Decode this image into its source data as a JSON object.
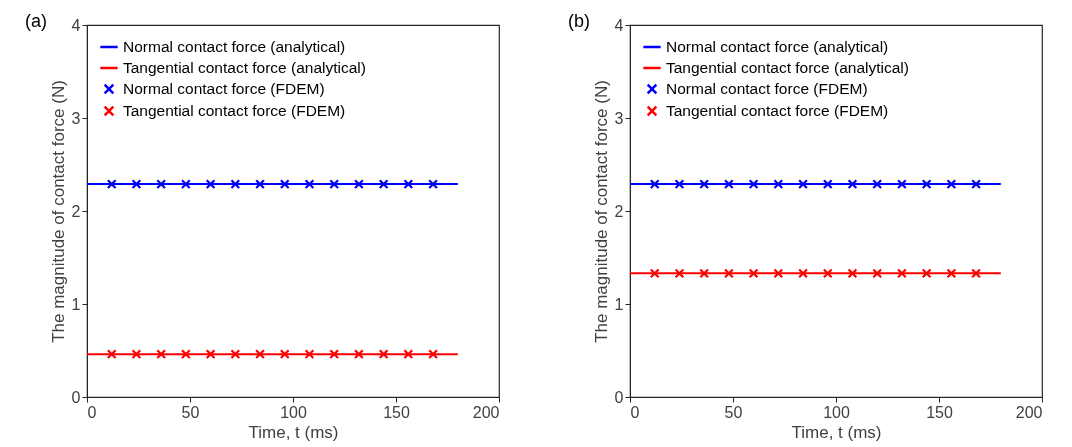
{
  "chart_data": [
    {
      "type": "line",
      "title": "(a)",
      "xlabel": "Time, t (ms)",
      "ylabel": "The magnitude of contact force (N)",
      "xlim": [
        0,
        200
      ],
      "xticks": [
        0,
        50,
        100,
        150,
        200
      ],
      "ylim": [
        0,
        4
      ],
      "yticks": [
        0,
        1,
        2,
        3,
        4
      ],
      "legend": "top left",
      "series": [
        {
          "name": "Normal contact force (analytical)",
          "color": "#0000ff",
          "x": [
            0,
            180
          ],
          "values": [
            2.29,
            2.29
          ]
        },
        {
          "name": "Tangential contact force (analytical)",
          "color": "#ff0000",
          "x": [
            0,
            180
          ],
          "values": [
            0.46,
            0.46
          ]
        },
        {
          "name": "Normal contact force (FDEM)",
          "color": "#0000ff",
          "type": "scatter",
          "marker": "cross",
          "x": [
            12,
            24,
            36,
            48,
            60,
            72,
            84,
            96,
            108,
            120,
            132,
            144,
            156,
            168
          ],
          "values": [
            2.29,
            2.29,
            2.29,
            2.29,
            2.29,
            2.29,
            2.29,
            2.29,
            2.29,
            2.29,
            2.29,
            2.29,
            2.29,
            2.29
          ]
        },
        {
          "name": "Tangential contact force (FDEM)",
          "color": "#ff0000",
          "type": "scatter",
          "marker": "cross",
          "x": [
            12,
            24,
            36,
            48,
            60,
            72,
            84,
            96,
            108,
            120,
            132,
            144,
            156,
            168
          ],
          "values": [
            0.46,
            0.46,
            0.46,
            0.46,
            0.46,
            0.46,
            0.46,
            0.46,
            0.46,
            0.46,
            0.46,
            0.46,
            0.46,
            0.46
          ]
        }
      ]
    },
    {
      "type": "line",
      "title": "(b)",
      "xlabel": "Time, t (ms)",
      "ylabel": "The magnitude of contact force (N)",
      "xlim": [
        0,
        200
      ],
      "xticks": [
        0,
        50,
        100,
        150,
        200
      ],
      "ylim": [
        0,
        4
      ],
      "yticks": [
        0,
        1,
        2,
        3,
        4
      ],
      "legend": "top left",
      "series": [
        {
          "name": "Normal contact force (analytical)",
          "color": "#0000ff",
          "x": [
            0,
            180
          ],
          "values": [
            2.29,
            2.29
          ]
        },
        {
          "name": "Tangential contact force (analytical)",
          "color": "#ff0000",
          "x": [
            0,
            180
          ],
          "values": [
            1.33,
            1.33
          ]
        },
        {
          "name": "Normal contact force (FDEM)",
          "color": "#0000ff",
          "type": "scatter",
          "marker": "cross",
          "x": [
            12,
            24,
            36,
            48,
            60,
            72,
            84,
            96,
            108,
            120,
            132,
            144,
            156,
            168
          ],
          "values": [
            2.29,
            2.29,
            2.29,
            2.29,
            2.29,
            2.29,
            2.29,
            2.29,
            2.29,
            2.29,
            2.29,
            2.29,
            2.29,
            2.29
          ]
        },
        {
          "name": "Tangential contact force (FDEM)",
          "color": "#ff0000",
          "type": "scatter",
          "marker": "cross",
          "x": [
            12,
            24,
            36,
            48,
            60,
            72,
            84,
            96,
            108,
            120,
            132,
            144,
            156,
            168
          ],
          "values": [
            1.33,
            1.33,
            1.33,
            1.33,
            1.33,
            1.33,
            1.33,
            1.33,
            1.33,
            1.33,
            1.33,
            1.33,
            1.33,
            1.33
          ]
        }
      ]
    }
  ]
}
